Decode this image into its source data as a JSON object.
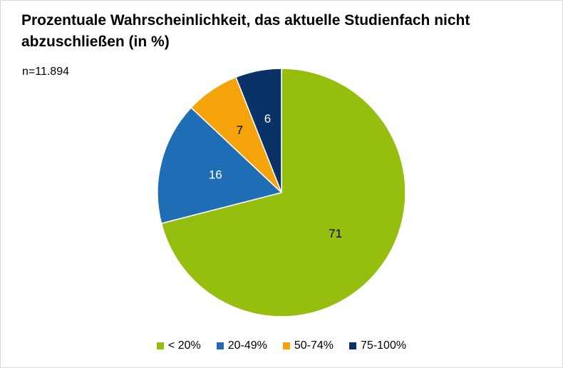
{
  "chart_data": {
    "type": "pie",
    "title": "Prozentuale Wahrscheinlichkeit, das aktuelle Studienfach nicht abzuschließen (in %)",
    "note": "n=11.894",
    "categories": [
      "< 20%",
      "20-49%",
      "50-74%",
      "75-100%"
    ],
    "values": [
      71,
      16,
      7,
      6
    ],
    "colors": [
      "#96be0e",
      "#1f6db5",
      "#f5a30a",
      "#0b3266"
    ],
    "label_colors": [
      "#000000",
      "#ffffff",
      "#000000",
      "#ffffff"
    ],
    "legend_position": "bottom",
    "start": "12 o'clock",
    "direction": "clockwise"
  }
}
